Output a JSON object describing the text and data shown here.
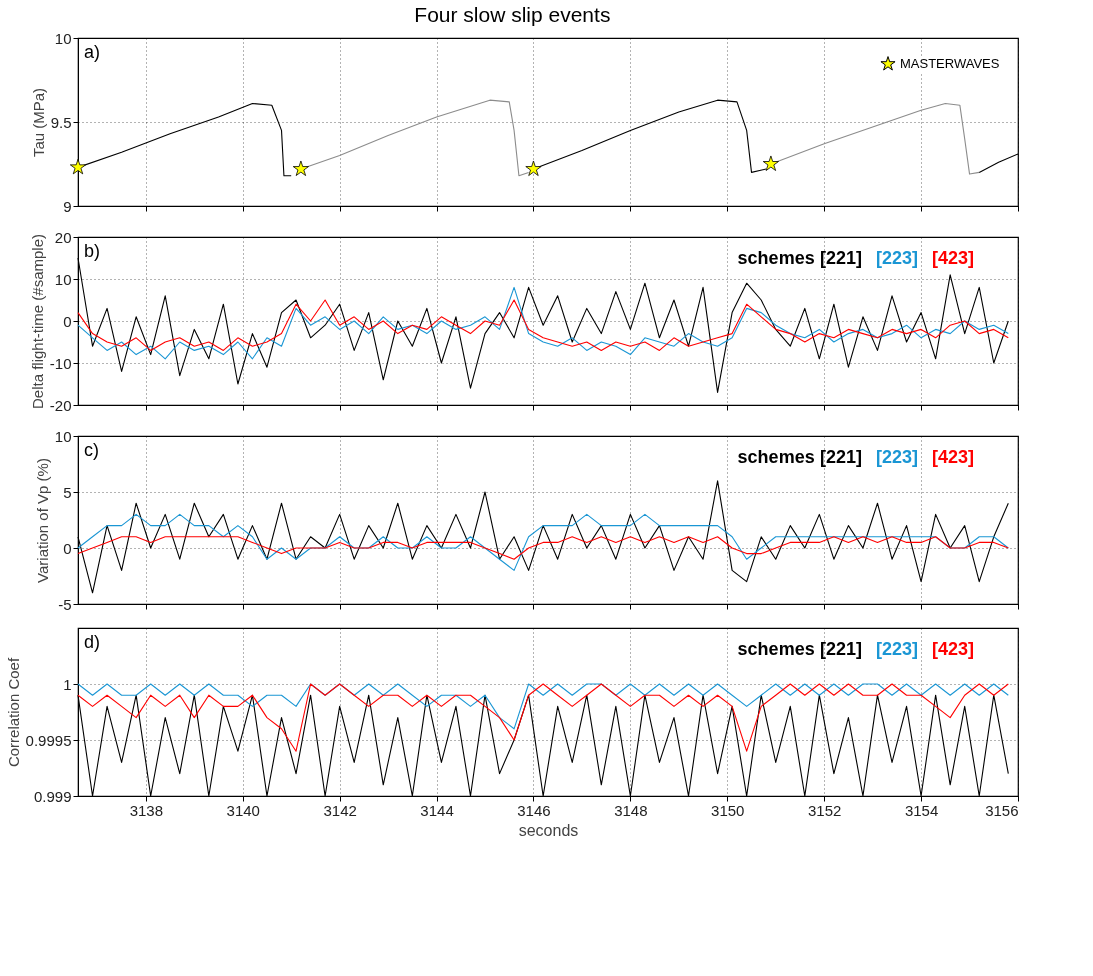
{
  "chart_data": [
    {
      "type": "line",
      "title": "Four slow slip events",
      "ylabel": "Tau (MPa)",
      "annotations": [
        "a)"
      ],
      "xlim": [
        3136.6,
        3156
      ],
      "xticks": [
        3138,
        3140,
        3142,
        3144,
        3146,
        3148,
        3150,
        3152,
        3154,
        3156
      ],
      "ylim": [
        9,
        10
      ],
      "yticks": [
        9,
        9.5,
        10
      ],
      "grid": true,
      "tick_labels": "y",
      "legend": "top right",
      "series": [
        {
          "color": "#000000",
          "x": [
            3136.6,
            3137.5,
            3138.5,
            3139.5,
            3140.2,
            3140.6,
            3140.8,
            3140.85,
            3141.0
          ],
          "values": [
            9.23,
            9.32,
            9.43,
            9.53,
            9.61,
            9.6,
            9.45,
            9.18,
            9.18
          ]
        },
        {
          "color": "#8c8c8c",
          "x": [
            3141.2,
            3142,
            3143,
            3144,
            3145.1,
            3145.5,
            3145.6,
            3145.7,
            3145.9
          ],
          "values": [
            9.22,
            9.3,
            9.42,
            9.53,
            9.63,
            9.62,
            9.45,
            9.18,
            9.2
          ]
        },
        {
          "color": "#000000",
          "x": [
            3146,
            3147,
            3148,
            3149,
            3149.8,
            3150.2,
            3150.4,
            3150.5,
            3150.8
          ],
          "values": [
            9.22,
            9.33,
            9.45,
            9.56,
            9.63,
            9.62,
            9.45,
            9.2,
            9.22
          ]
        },
        {
          "color": "#8c8c8c",
          "x": [
            3150.9,
            3152,
            3153,
            3154,
            3154.5,
            3154.8,
            3154.9,
            3155.0,
            3155.2
          ],
          "values": [
            9.25,
            9.37,
            9.47,
            9.57,
            9.61,
            9.6,
            9.4,
            9.19,
            9.2
          ]
        },
        {
          "color": "#000000",
          "x": [
            3155.2,
            3155.6,
            3156
          ],
          "values": [
            9.2,
            9.26,
            9.31
          ]
        },
        {
          "type": "scatter",
          "name": "MASTERWAVES",
          "color": "#ffff00",
          "marker": "star",
          "x": [
            3136.6,
            3141.2,
            3146.0,
            3150.9
          ],
          "values": [
            9.23,
            9.22,
            9.22,
            9.25
          ]
        }
      ]
    },
    {
      "type": "line",
      "ylabel": "Delta flight-time (#sample)",
      "annotations": [
        "b)"
      ],
      "legend_title": "schemes",
      "xlim": [
        3136.6,
        3156
      ],
      "xticks": [
        3138,
        3140,
        3142,
        3144,
        3146,
        3148,
        3150,
        3152,
        3154,
        3156
      ],
      "ylim": [
        -20,
        20
      ],
      "yticks": [
        -20,
        -10,
        0,
        10,
        20
      ],
      "grid": true,
      "tick_labels": "y",
      "legend": "top right",
      "x": [
        3136.6,
        3136.9,
        3137.2,
        3137.5,
        3137.8,
        3138.1,
        3138.4,
        3138.7,
        3139.0,
        3139.3,
        3139.6,
        3139.9,
        3140.2,
        3140.5,
        3140.8,
        3141.1,
        3141.4,
        3141.7,
        3142.0,
        3142.3,
        3142.6,
        3142.9,
        3143.2,
        3143.5,
        3143.8,
        3144.1,
        3144.4,
        3144.7,
        3145.0,
        3145.3,
        3145.6,
        3145.9,
        3146.2,
        3146.5,
        3146.8,
        3147.1,
        3147.4,
        3147.7,
        3148.0,
        3148.3,
        3148.6,
        3148.9,
        3149.2,
        3149.5,
        3149.8,
        3150.1,
        3150.4,
        3150.7,
        3151.0,
        3151.3,
        3151.6,
        3151.9,
        3152.2,
        3152.5,
        3152.8,
        3153.1,
        3153.4,
        3153.7,
        3154.0,
        3154.3,
        3154.6,
        3154.9,
        3155.2,
        3155.5,
        3155.8
      ],
      "series": [
        {
          "name": "[221]",
          "color": "#000000",
          "values": [
            15,
            -6,
            3,
            -12,
            1,
            -8,
            6,
            -13,
            -2,
            -9,
            4,
            -15,
            -3,
            -11,
            2,
            5,
            -4,
            -1,
            4,
            -7,
            2,
            -14,
            0,
            -6,
            3,
            -10,
            1,
            -16,
            -3,
            2,
            -4,
            8,
            -1,
            6,
            -5,
            3,
            -3,
            7,
            -2,
            9,
            -4,
            5,
            -6,
            8,
            -17,
            2,
            9,
            5,
            -2,
            -6,
            3,
            -9,
            4,
            -11,
            1,
            -7,
            6,
            -5,
            2,
            -9,
            11,
            -3,
            8,
            -10,
            0
          ]
        },
        {
          "name": "[223]",
          "color": "#1a96d4",
          "values": [
            -1,
            -4,
            -7,
            -5,
            -8,
            -6,
            -9,
            -5,
            -7,
            -6,
            -8,
            -5,
            -9,
            -4,
            -6,
            3,
            -1,
            1,
            -2,
            0,
            -3,
            1,
            -2,
            -1,
            -3,
            0,
            -2,
            -1,
            1,
            -2,
            8,
            -3,
            -5,
            -6,
            -4,
            -7,
            -5,
            -6,
            -8,
            -4,
            -5,
            -6,
            -3,
            -5,
            -6,
            -4,
            3,
            2,
            -1,
            -3,
            -4,
            -2,
            -5,
            -3,
            -2,
            -4,
            -3,
            -1,
            -4,
            -2,
            -3,
            0,
            -2,
            -1,
            -3
          ]
        },
        {
          "name": "[423]",
          "color": "#ff0000",
          "values": [
            2,
            -3,
            -5,
            -6,
            -4,
            -7,
            -5,
            -4,
            -6,
            -5,
            -7,
            -4,
            -6,
            -5,
            -3,
            4,
            0,
            5,
            -1,
            1,
            -2,
            0,
            -3,
            -1,
            -2,
            1,
            -1,
            -3,
            0,
            -1,
            5,
            -2,
            -4,
            -5,
            -6,
            -5,
            -7,
            -5,
            -6,
            -5,
            -7,
            -4,
            -6,
            -5,
            -4,
            -3,
            4,
            1,
            -2,
            -3,
            -5,
            -3,
            -4,
            -2,
            -3,
            -4,
            -2,
            -3,
            -2,
            -4,
            -1,
            0,
            -3,
            -2,
            -4
          ]
        }
      ]
    },
    {
      "type": "line",
      "ylabel": "Variation of Vp (%)",
      "annotations": [
        "c)"
      ],
      "legend_title": "schemes",
      "xlim": [
        3136.6,
        3156
      ],
      "xticks": [
        3138,
        3140,
        3142,
        3144,
        3146,
        3148,
        3150,
        3152,
        3154,
        3156
      ],
      "ylim": [
        -5,
        10
      ],
      "yticks": [
        -5,
        0,
        5,
        10
      ],
      "grid": true,
      "tick_labels": "y",
      "legend": "top right",
      "x": [
        3136.6,
        3136.9,
        3137.2,
        3137.5,
        3137.8,
        3138.1,
        3138.4,
        3138.7,
        3139.0,
        3139.3,
        3139.6,
        3139.9,
        3140.2,
        3140.5,
        3140.8,
        3141.1,
        3141.4,
        3141.7,
        3142.0,
        3142.3,
        3142.6,
        3142.9,
        3143.2,
        3143.5,
        3143.8,
        3144.1,
        3144.4,
        3144.7,
        3145.0,
        3145.3,
        3145.6,
        3145.9,
        3146.2,
        3146.5,
        3146.8,
        3147.1,
        3147.4,
        3147.7,
        3148.0,
        3148.3,
        3148.6,
        3148.9,
        3149.2,
        3149.5,
        3149.8,
        3150.1,
        3150.4,
        3150.7,
        3151.0,
        3151.3,
        3151.6,
        3151.9,
        3152.2,
        3152.5,
        3152.8,
        3153.1,
        3153.4,
        3153.7,
        3154.0,
        3154.3,
        3154.6,
        3154.9,
        3155.2,
        3155.5,
        3155.8
      ],
      "series": [
        {
          "name": "[221]",
          "color": "#000000",
          "values": [
            1,
            -4,
            2,
            -2,
            4,
            0,
            3,
            -1,
            4,
            1,
            3,
            -1,
            2,
            -1,
            4,
            -1,
            1,
            0,
            3,
            -1,
            2,
            0,
            4,
            -1,
            2,
            0,
            3,
            0,
            5,
            -1,
            1,
            -2,
            2,
            -1,
            3,
            0,
            2,
            -1,
            3,
            0,
            2,
            -2,
            1,
            -1,
            6,
            -2,
            -3,
            1,
            -1,
            2,
            0,
            3,
            -1,
            2,
            0,
            4,
            -1,
            2,
            -3,
            3,
            0,
            2,
            -3,
            1,
            4
          ]
        },
        {
          "name": "[223]",
          "color": "#1a96d4",
          "values": [
            0,
            1,
            2,
            2,
            3,
            2,
            2,
            3,
            2,
            2,
            1,
            2,
            1,
            -1,
            0,
            -1,
            0,
            0,
            1,
            0,
            0,
            1,
            0,
            0,
            1,
            0,
            0,
            1,
            0,
            -1,
            -2,
            1,
            2,
            2,
            2,
            3,
            2,
            2,
            2,
            3,
            2,
            2,
            2,
            2,
            2,
            1,
            -1,
            0,
            1,
            1,
            1,
            1,
            1,
            1,
            1,
            1,
            1,
            1,
            1,
            1,
            0,
            0,
            1,
            1,
            0
          ]
        },
        {
          "name": "[423]",
          "color": "#ff0000",
          "values": [
            -0.5,
            0,
            0.5,
            1,
            1,
            0.5,
            1,
            1,
            1,
            1,
            1,
            1,
            0.5,
            0,
            -0.5,
            0,
            0,
            0,
            0.5,
            0,
            0,
            0.5,
            0.5,
            0,
            0.5,
            0.5,
            0.5,
            0.5,
            0,
            -0.5,
            -1,
            0,
            0.5,
            0.5,
            1,
            0.5,
            1,
            0.5,
            1,
            0.5,
            1,
            0.5,
            1,
            0.5,
            1,
            0,
            -0.5,
            -0.5,
            0,
            0.5,
            0.5,
            0.5,
            1,
            0.5,
            1,
            0.5,
            1,
            0.5,
            0.5,
            1,
            0,
            0,
            0.5,
            0.5,
            0
          ]
        }
      ]
    },
    {
      "type": "line",
      "ylabel": "Correlation Coef",
      "xlabel": "seconds",
      "annotations": [
        "d)"
      ],
      "legend_title": "schemes",
      "xlim": [
        3136.6,
        3156
      ],
      "xticks": [
        3138,
        3140,
        3142,
        3144,
        3146,
        3148,
        3150,
        3152,
        3154,
        3156
      ],
      "ylim": [
        0.999,
        1.0005
      ],
      "yticks": [
        0.999,
        0.9995,
        1
      ],
      "grid": true,
      "legend": "top right",
      "x": [
        3136.6,
        3136.9,
        3137.2,
        3137.5,
        3137.8,
        3138.1,
        3138.4,
        3138.7,
        3139.0,
        3139.3,
        3139.6,
        3139.9,
        3140.2,
        3140.5,
        3140.8,
        3141.1,
        3141.4,
        3141.7,
        3142.0,
        3142.3,
        3142.6,
        3142.9,
        3143.2,
        3143.5,
        3143.8,
        3144.1,
        3144.4,
        3144.7,
        3145.0,
        3145.3,
        3145.6,
        3145.9,
        3146.2,
        3146.5,
        3146.8,
        3147.1,
        3147.4,
        3147.7,
        3148.0,
        3148.3,
        3148.6,
        3148.9,
        3149.2,
        3149.5,
        3149.8,
        3150.1,
        3150.4,
        3150.7,
        3151.0,
        3151.3,
        3151.6,
        3151.9,
        3152.2,
        3152.5,
        3152.8,
        3153.1,
        3153.4,
        3153.7,
        3154.0,
        3154.3,
        3154.6,
        3154.9,
        3155.2,
        3155.5,
        3155.8
      ],
      "series": [
        {
          "name": "[221]",
          "color": "#000000",
          "values": [
            0.9999,
            0.999,
            0.9998,
            0.9993,
            0.9999,
            0.999,
            0.9997,
            0.9992,
            0.9999,
            0.999,
            0.9998,
            0.9994,
            0.9999,
            0.999,
            0.9997,
            0.9992,
            0.9999,
            0.999,
            0.9998,
            0.9993,
            0.9999,
            0.9991,
            0.9997,
            0.999,
            0.9999,
            0.9993,
            0.9998,
            0.999,
            0.9999,
            0.9992,
            0.9995,
            0.9999,
            0.999,
            0.9998,
            0.9993,
            0.9999,
            0.9991,
            0.9998,
            0.999,
            0.9999,
            0.9993,
            0.9997,
            0.999,
            0.9999,
            0.9992,
            0.9998,
            0.999,
            0.9999,
            0.9993,
            0.9998,
            0.999,
            0.9999,
            0.9992,
            0.9997,
            0.999,
            0.9999,
            0.9993,
            0.9998,
            0.999,
            0.9999,
            0.9991,
            0.9998,
            0.999,
            0.9999,
            0.9992
          ]
        },
        {
          "name": "[223]",
          "color": "#1a96d4",
          "values": [
            1,
            0.9999,
            1,
            0.9999,
            0.9999,
            1,
            0.9999,
            1,
            0.9999,
            1,
            0.9999,
            0.9999,
            0.9998,
            0.9999,
            0.9999,
            0.9998,
            1,
            0.9999,
            1,
            0.9999,
            1,
            0.9999,
            1,
            0.9999,
            0.9998,
            0.9999,
            0.9999,
            0.9998,
            0.9999,
            0.9997,
            0.9996,
            1,
            0.9999,
            1,
            0.9999,
            1,
            1,
            0.9999,
            1,
            0.9999,
            1,
            0.9999,
            1,
            0.9999,
            1,
            0.9999,
            0.9998,
            0.9999,
            1,
            0.9999,
            1,
            0.9999,
            1,
            0.9999,
            1,
            1,
            0.9999,
            1,
            0.9999,
            1,
            0.9999,
            1,
            0.9999,
            1,
            0.9999
          ]
        },
        {
          "name": "[423]",
          "color": "#ff0000",
          "values": [
            0.9999,
            0.9998,
            0.9999,
            0.9998,
            0.9997,
            0.9999,
            0.9998,
            0.9999,
            0.9997,
            0.9999,
            0.9998,
            0.9998,
            0.9999,
            0.9997,
            0.9996,
            0.9994,
            1,
            0.9999,
            1,
            0.9999,
            0.9998,
            0.9999,
            0.9999,
            0.9998,
            0.9999,
            0.9998,
            0.9999,
            0.9999,
            0.9998,
            0.9997,
            0.9995,
            0.9999,
            1,
            0.9999,
            0.9998,
            0.9999,
            1,
            0.9999,
            0.9998,
            0.9999,
            0.9999,
            0.9998,
            0.9999,
            0.9998,
            0.9999,
            0.9998,
            0.9994,
            0.9998,
            0.9999,
            1,
            0.9999,
            1,
            0.9999,
            1,
            0.9999,
            0.9999,
            1,
            0.9999,
            0.9999,
            0.9998,
            0.9997,
            0.9999,
            1,
            0.9999,
            1
          ]
        }
      ]
    }
  ]
}
